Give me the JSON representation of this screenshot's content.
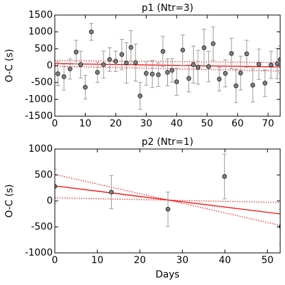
{
  "chart_data": [
    {
      "type": "scatter",
      "title": "p1 (Ntr=3)",
      "y_label": "O-C (s)",
      "xlim": [
        0,
        74
      ],
      "xticks": [
        0,
        10,
        20,
        30,
        40,
        50,
        60,
        70
      ],
      "ylim": [
        -1500,
        1500
      ],
      "yticks": [
        -1500,
        -1000,
        -500,
        0,
        500,
        1000,
        1500
      ],
      "series": [
        {
          "color": "#808080",
          "x": [
            1,
            3,
            5,
            7,
            8.5,
            10,
            12,
            14,
            16,
            18,
            20,
            22,
            23.5,
            25,
            26.5,
            28,
            30,
            32,
            34,
            35.5,
            37,
            38.5,
            40,
            42,
            44,
            45.5,
            47,
            49,
            50.5,
            52,
            54,
            56,
            58,
            59.5,
            61,
            63,
            65,
            67,
            69,
            71,
            73,
            74
          ],
          "values": [
            -240,
            -330,
            -100,
            400,
            30,
            -640,
            1000,
            -200,
            30,
            180,
            130,
            330,
            80,
            540,
            90,
            -900,
            -230,
            -250,
            -270,
            420,
            -200,
            -140,
            -480,
            460,
            -380,
            30,
            -50,
            530,
            -30,
            650,
            -400,
            -230,
            360,
            -600,
            -220,
            350,
            -580,
            40,
            -520,
            20,
            60,
            180
          ],
          "errors": [
            350,
            400,
            300,
            350,
            400,
            350,
            250,
            300,
            400,
            350,
            300,
            450,
            600,
            500,
            550,
            400,
            350,
            400,
            350,
            450,
            400,
            350,
            400,
            450,
            400,
            550,
            500,
            550,
            450,
            500,
            350,
            400,
            450,
            500,
            500,
            400,
            500,
            450,
            400,
            400,
            450,
            400
          ]
        }
      ],
      "fits": [
        {
          "color": "#ff0000",
          "style": "solid",
          "x": [
            0,
            74
          ],
          "values": [
            60,
            -40
          ]
        },
        {
          "color": "#ff0000",
          "style": "dotted",
          "x": [
            0,
            74
          ],
          "values": [
            150,
            90
          ]
        },
        {
          "color": "#ff0000",
          "style": "dotted",
          "x": [
            0,
            74
          ],
          "values": [
            -20,
            -160
          ]
        }
      ]
    },
    {
      "type": "scatter",
      "title": "p2 (Ntr=1)",
      "y_label": "O-C (s)",
      "x_label": "Days",
      "xlim": [
        0,
        53
      ],
      "xticks": [
        0,
        10,
        20,
        30,
        40,
        50
      ],
      "ylim": [
        -1000,
        1000
      ],
      "yticks": [
        -1000,
        -500,
        0,
        500,
        1000
      ],
      "series": [
        {
          "color": "#808080",
          "x": [
            0,
            13.3,
            26.6,
            39.9,
            53.2
          ],
          "values": [
            280,
            170,
            -160,
            470,
            -490
          ],
          "errors": [
            330,
            320,
            330,
            430,
            330
          ]
        }
      ],
      "fits": [
        {
          "color": "#ff0000",
          "style": "solid",
          "x": [
            0,
            53
          ],
          "values": [
            290,
            -250
          ]
        },
        {
          "color": "#ff0000",
          "style": "dotted",
          "x": [
            0,
            53
          ],
          "values": [
            510,
            -470
          ]
        },
        {
          "color": "#ff0000",
          "style": "dotted",
          "x": [
            0,
            53
          ],
          "values": [
            60,
            -30
          ]
        }
      ]
    }
  ]
}
